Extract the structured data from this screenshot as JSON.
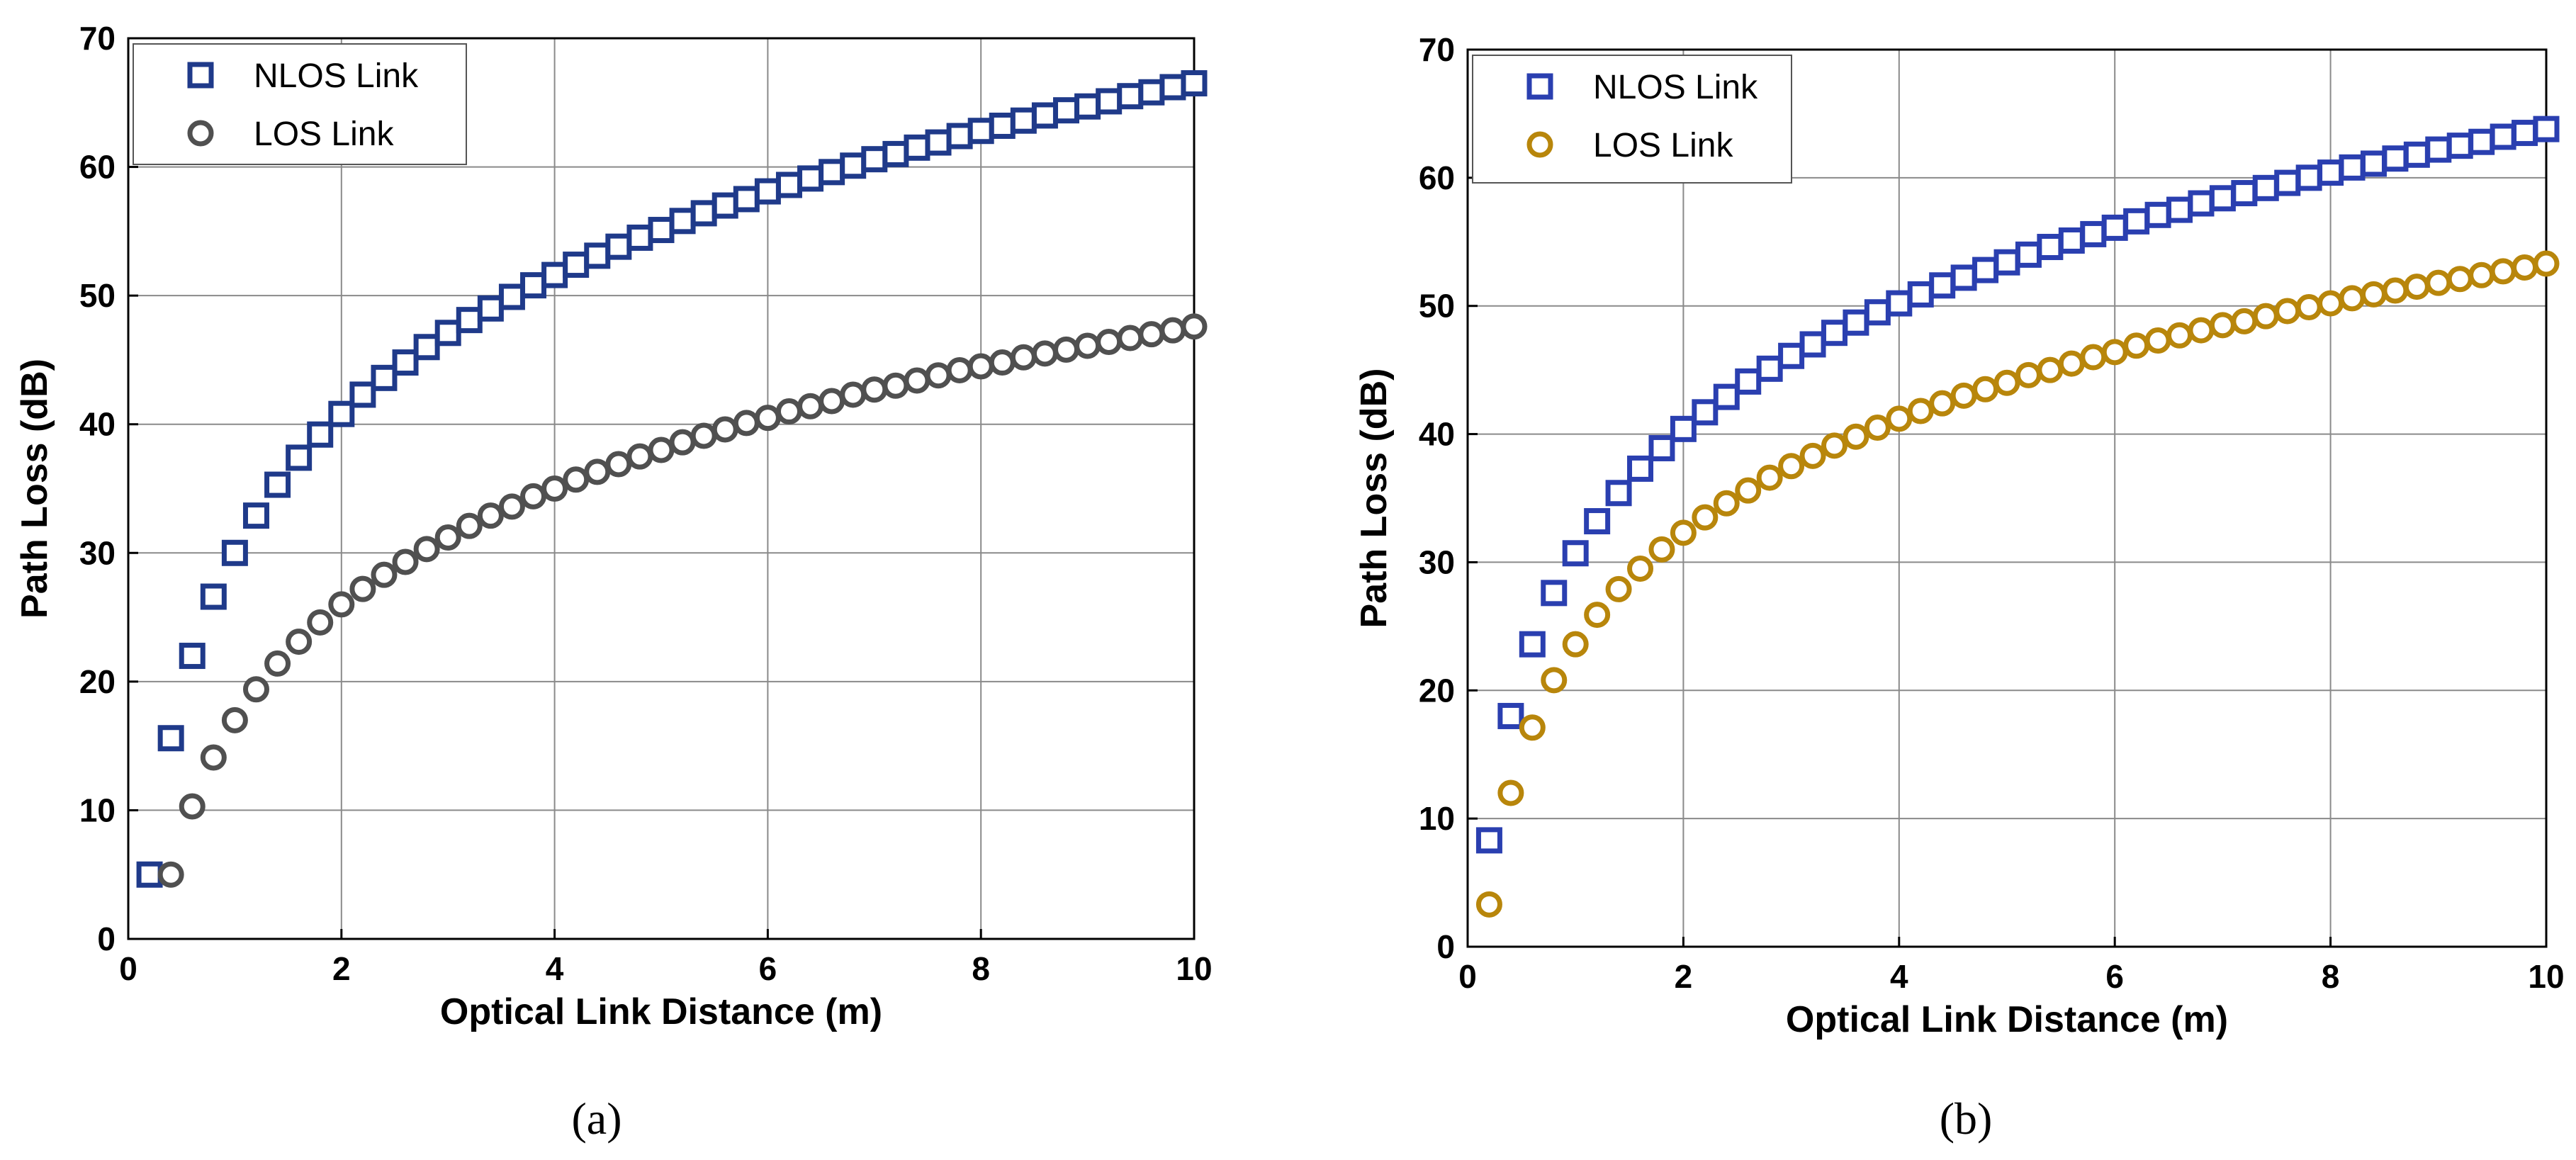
{
  "chart_data": [
    {
      "type": "scatter",
      "panel_label": "(a)",
      "xlabel": "Optical Link Distance (m)",
      "ylabel": "Path Loss (dB)",
      "xlim": [
        0,
        10
      ],
      "ylim": [
        0,
        70
      ],
      "xticks": [
        0,
        2,
        4,
        6,
        8,
        10
      ],
      "yticks": [
        0,
        10,
        20,
        30,
        40,
        50,
        60,
        70
      ],
      "grid": true,
      "legend_position": "top-left",
      "x": [
        0.2,
        0.4,
        0.6,
        0.8,
        1.0,
        1.2,
        1.4,
        1.6,
        1.8,
        2.0,
        2.2,
        2.4,
        2.6,
        2.8,
        3.0,
        3.2,
        3.4,
        3.6,
        3.8,
        4.0,
        4.2,
        4.4,
        4.6,
        4.8,
        5.0,
        5.2,
        5.4,
        5.6,
        5.8,
        6.0,
        6.2,
        6.4,
        6.6,
        6.8,
        7.0,
        7.2,
        7.4,
        7.6,
        7.8,
        8.0,
        8.2,
        8.4,
        8.6,
        8.8,
        9.0,
        9.2,
        9.4,
        9.6,
        9.8,
        10.0
      ],
      "series": [
        {
          "name": "NLOS Link",
          "marker": "square",
          "color": "#1f3a8a",
          "values": [
            5.0,
            15.6,
            22.0,
            26.6,
            30.0,
            32.9,
            35.3,
            37.4,
            39.2,
            40.8,
            42.3,
            43.6,
            44.8,
            46.0,
            47.1,
            48.1,
            49.0,
            49.9,
            50.8,
            51.6,
            52.4,
            53.1,
            53.8,
            54.5,
            55.1,
            55.8,
            56.4,
            57.0,
            57.5,
            58.1,
            58.6,
            59.1,
            59.6,
            60.1,
            60.6,
            61.0,
            61.5,
            61.9,
            62.4,
            62.8,
            63.2,
            63.6,
            64.0,
            64.4,
            64.7,
            65.1,
            65.5,
            65.8,
            66.2,
            66.5
          ]
        },
        {
          "name": "LOS Link",
          "marker": "circle",
          "color": "#505050",
          "values": [
            null,
            5.0,
            10.3,
            14.1,
            17.0,
            19.4,
            21.4,
            23.1,
            24.6,
            26.0,
            27.2,
            28.3,
            29.3,
            30.3,
            31.2,
            32.1,
            32.9,
            33.6,
            34.4,
            35.0,
            35.7,
            36.3,
            36.9,
            37.5,
            38.0,
            38.6,
            39.1,
            39.6,
            40.1,
            40.5,
            41.0,
            41.4,
            41.8,
            42.3,
            42.7,
            43.0,
            43.4,
            43.8,
            44.2,
            44.5,
            44.8,
            45.2,
            45.5,
            45.8,
            46.1,
            46.4,
            46.7,
            47.0,
            47.3,
            47.6
          ]
        }
      ]
    },
    {
      "type": "scatter",
      "panel_label": "(b)",
      "xlabel": "Optical Link Distance (m)",
      "ylabel": "Path Loss (dB)",
      "xlim": [
        0,
        10
      ],
      "ylim": [
        0,
        70
      ],
      "xticks": [
        0,
        2,
        4,
        6,
        8,
        10
      ],
      "yticks": [
        0,
        10,
        20,
        30,
        40,
        50,
        60,
        70
      ],
      "grid": true,
      "legend_position": "top-left",
      "x": [
        0.2,
        0.4,
        0.6,
        0.8,
        1.0,
        1.2,
        1.4,
        1.6,
        1.8,
        2.0,
        2.2,
        2.4,
        2.6,
        2.8,
        3.0,
        3.2,
        3.4,
        3.6,
        3.8,
        4.0,
        4.2,
        4.4,
        4.6,
        4.8,
        5.0,
        5.2,
        5.4,
        5.6,
        5.8,
        6.0,
        6.2,
        6.4,
        6.6,
        6.8,
        7.0,
        7.2,
        7.4,
        7.6,
        7.8,
        8.0,
        8.2,
        8.4,
        8.6,
        8.8,
        9.0,
        9.2,
        9.4,
        9.6,
        9.8,
        10.0
      ],
      "series": [
        {
          "name": "NLOS Link",
          "marker": "square",
          "color": "#2a3fb0",
          "values": [
            8.3,
            18.0,
            23.6,
            27.6,
            30.7,
            33.2,
            35.4,
            37.3,
            38.9,
            40.4,
            41.7,
            42.9,
            44.1,
            45.1,
            46.1,
            47.0,
            47.9,
            48.7,
            49.5,
            50.2,
            50.9,
            51.6,
            52.2,
            52.8,
            53.4,
            54.0,
            54.6,
            55.1,
            55.6,
            56.1,
            56.6,
            57.1,
            57.5,
            58.0,
            58.4,
            58.8,
            59.2,
            59.6,
            60.0,
            60.4,
            60.8,
            61.1,
            61.5,
            61.8,
            62.2,
            62.5,
            62.8,
            63.2,
            63.5,
            63.8
          ]
        },
        {
          "name": "LOS Link",
          "marker": "circle",
          "color": "#b8860b",
          "values": [
            3.3,
            12.0,
            17.1,
            20.8,
            23.6,
            25.9,
            27.9,
            29.5,
            31.0,
            32.3,
            33.5,
            34.6,
            35.6,
            36.6,
            37.5,
            38.3,
            39.1,
            39.8,
            40.5,
            41.2,
            41.8,
            42.4,
            43.0,
            43.5,
            44.0,
            44.6,
            45.0,
            45.5,
            46.0,
            46.4,
            46.9,
            47.3,
            47.7,
            48.1,
            48.5,
            48.8,
            49.2,
            49.6,
            49.9,
            50.2,
            50.6,
            50.9,
            51.2,
            51.5,
            51.8,
            52.1,
            52.4,
            52.7,
            53.0,
            53.3
          ]
        }
      ]
    }
  ]
}
